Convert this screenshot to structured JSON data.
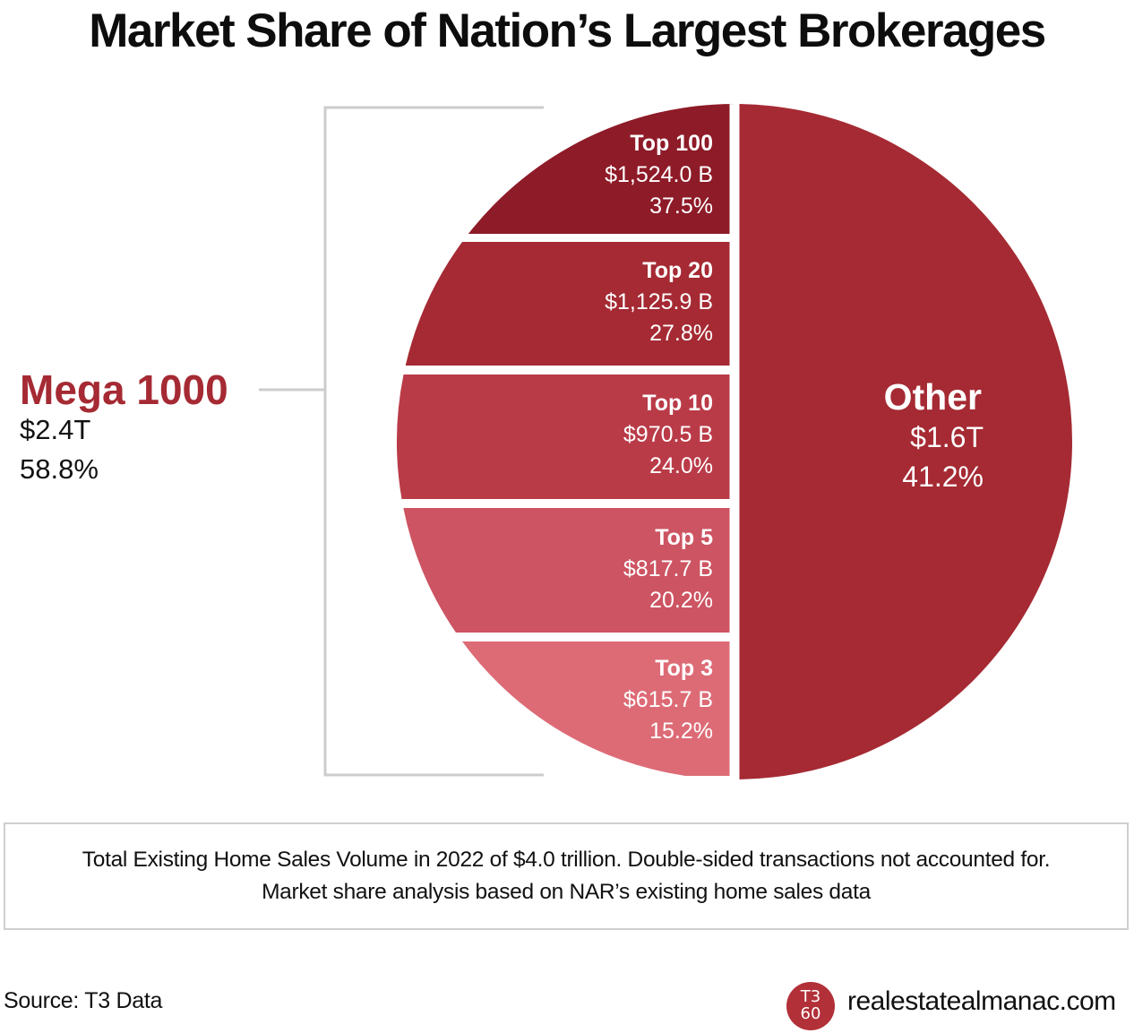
{
  "title": "Market Share of Nation’s Largest Brokerages",
  "colors": {
    "top100": "#8e1b28",
    "top20": "#a52a33",
    "top10": "#ba3b48",
    "top5": "#cd5462",
    "top3": "#dd6b76",
    "other": "#a52a33",
    "bracket": "#cccccc",
    "accent_text": "#a52a33"
  },
  "chart_data": {
    "type": "pie",
    "segments": [
      {
        "name": "Top 100",
        "value_label": "$1,524.0 B",
        "share_label": "37.5%",
        "value": 1524.0,
        "share": 37.5
      },
      {
        "name": "Top 20",
        "value_label": "$1,125.9 B",
        "share_label": "27.8%",
        "value": 1125.9,
        "share": 27.8
      },
      {
        "name": "Top 10",
        "value_label": "$970.5 B",
        "share_label": "24.0%",
        "value": 970.5,
        "share": 24.0
      },
      {
        "name": "Top 5",
        "value_label": "$817.7 B",
        "share_label": "20.2%",
        "value": 817.7,
        "share": 20.2
      },
      {
        "name": "Top 3",
        "value_label": "$615.7 B",
        "share_label": "15.2%",
        "value": 615.7,
        "share": 15.2
      }
    ],
    "other": {
      "name": "Other",
      "value_label": "$1.6T",
      "share_label": "41.2%",
      "share": 41.2
    },
    "mega": {
      "name": "Mega 1000",
      "value_label": "$2.4T",
      "share_label": "58.8%",
      "share": 58.8
    }
  },
  "note": {
    "line1": "Total Existing Home Sales Volume in 2022 of $4.0 trillion. Double-sided transactions not accounted for.",
    "line2": "Market share analysis based on NAR’s existing home sales data"
  },
  "source": "Source: T3 Data",
  "logo": {
    "line1": "T3",
    "line2": "60"
  },
  "website": "realestatealmanac.com"
}
